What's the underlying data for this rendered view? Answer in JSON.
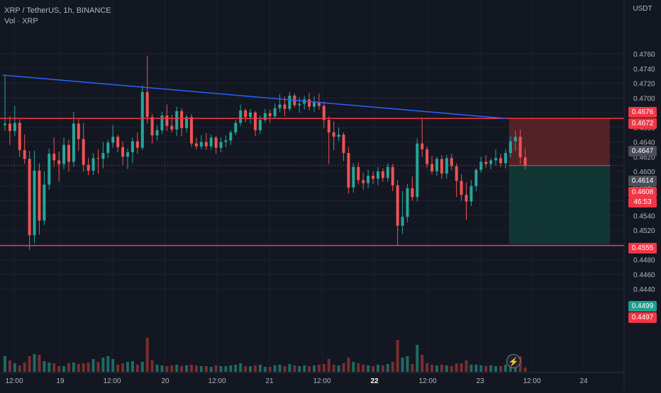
{
  "legend": {
    "symbol_line": "XRP / TetherUS, 1h, BINANCE",
    "volume_line": "Vol · XRP"
  },
  "currency_label": "USDT",
  "colors": {
    "background": "#131722",
    "up": "#26a69a",
    "down": "#ef5350",
    "trendline": "#2962ff",
    "level_line": "#f23645",
    "risk_zone": "#5c2228",
    "reward_zone": "#133a36"
  },
  "price_tags": {
    "tag_4676": "0.4676",
    "tag_4672": "0.4672",
    "tag_4647": "0.4647",
    "tag_4614": "0.4614",
    "tag_4608": "0.4608",
    "countdown": "46:53",
    "tag_4555": "0.4555",
    "tag_4499": "0.4499",
    "tag_4497": "0.4497"
  },
  "chart_data": {
    "type": "candlestick",
    "title": "XRP / TetherUS, 1h, BINANCE",
    "ylabel": "USDT",
    "y_ticks": [
      "0.4760",
      "0.4740",
      "0.4720",
      "0.4700",
      "0.4680",
      "0.4660",
      "0.4640",
      "0.4620",
      "0.4600",
      "0.4580",
      "0.4560",
      "0.4540",
      "0.4520",
      "0.4500",
      "0.4480",
      "0.4460",
      "0.4440"
    ],
    "x_ticks": [
      "12:00",
      "19",
      "12:00",
      "20",
      "12:00",
      "21",
      "12:00",
      "22",
      "12:00",
      "23",
      "12:00",
      "24"
    ],
    "grid": true,
    "horizontal_lines": [
      0.4672,
      0.4499
    ],
    "trendline": {
      "start": {
        "bar": 0,
        "price": 0.4731
      },
      "end": {
        "bar": 102,
        "price": 0.4672
      }
    },
    "position": {
      "entry": 0.4608,
      "stop": 0.4672,
      "target": 0.4501,
      "start_bar": 103,
      "end_bar": 122
    },
    "volume_pane": "Vol · XRP",
    "candles_ohlc": [
      [
        0.4663,
        0.4731,
        0.4655,
        0.4665
      ],
      [
        0.4665,
        0.4675,
        0.4636,
        0.4655
      ],
      [
        0.4655,
        0.4689,
        0.4648,
        0.4666
      ],
      [
        0.4666,
        0.4671,
        0.462,
        0.4629
      ],
      [
        0.4629,
        0.465,
        0.461,
        0.4617
      ],
      [
        0.4617,
        0.4628,
        0.4493,
        0.4513
      ],
      [
        0.4513,
        0.4628,
        0.4502,
        0.4601
      ],
      [
        0.4601,
        0.4611,
        0.4514,
        0.4533
      ],
      [
        0.4533,
        0.46,
        0.4527,
        0.4582
      ],
      [
        0.4582,
        0.4631,
        0.4575,
        0.4624
      ],
      [
        0.4624,
        0.4646,
        0.4606,
        0.4615
      ],
      [
        0.4615,
        0.4627,
        0.4586,
        0.461
      ],
      [
        0.461,
        0.4646,
        0.4603,
        0.4636
      ],
      [
        0.4636,
        0.4643,
        0.46,
        0.4613
      ],
      [
        0.4613,
        0.4681,
        0.4606,
        0.4665
      ],
      [
        0.4665,
        0.4672,
        0.4628,
        0.4644
      ],
      [
        0.4644,
        0.4666,
        0.46,
        0.4609
      ],
      [
        0.4609,
        0.4618,
        0.4595,
        0.4601
      ],
      [
        0.4601,
        0.4625,
        0.4595,
        0.4618
      ],
      [
        0.4618,
        0.463,
        0.4597,
        0.4617
      ],
      [
        0.4617,
        0.464,
        0.4604,
        0.4625
      ],
      [
        0.4625,
        0.4643,
        0.4618,
        0.4639
      ],
      [
        0.4639,
        0.4663,
        0.4632,
        0.4647
      ],
      [
        0.4647,
        0.465,
        0.4626,
        0.4633
      ],
      [
        0.4633,
        0.4641,
        0.4609,
        0.462
      ],
      [
        0.462,
        0.4631,
        0.4603,
        0.4626
      ],
      [
        0.4626,
        0.4646,
        0.4611,
        0.4641
      ],
      [
        0.4641,
        0.4653,
        0.4624,
        0.4632
      ],
      [
        0.4632,
        0.4717,
        0.4629,
        0.4708
      ],
      [
        0.4708,
        0.4757,
        0.4665,
        0.4674
      ],
      [
        0.4674,
        0.4678,
        0.4638,
        0.4649
      ],
      [
        0.4649,
        0.4663,
        0.4642,
        0.4656
      ],
      [
        0.4656,
        0.4681,
        0.4651,
        0.4676
      ],
      [
        0.4676,
        0.4691,
        0.4655,
        0.4662
      ],
      [
        0.4662,
        0.4677,
        0.4653,
        0.4657
      ],
      [
        0.4657,
        0.4688,
        0.4648,
        0.4682
      ],
      [
        0.4682,
        0.4686,
        0.4648,
        0.4659
      ],
      [
        0.4659,
        0.4677,
        0.4653,
        0.4674
      ],
      [
        0.4674,
        0.4678,
        0.4633,
        0.4638
      ],
      [
        0.4638,
        0.4646,
        0.463,
        0.4634
      ],
      [
        0.4634,
        0.4649,
        0.463,
        0.464
      ],
      [
        0.464,
        0.4652,
        0.4629,
        0.4634
      ],
      [
        0.4634,
        0.465,
        0.463,
        0.4646
      ],
      [
        0.4646,
        0.4648,
        0.4624,
        0.4632
      ],
      [
        0.4632,
        0.4646,
        0.4626,
        0.464
      ],
      [
        0.464,
        0.4649,
        0.4633,
        0.4642
      ],
      [
        0.4642,
        0.4656,
        0.4636,
        0.4653
      ],
      [
        0.4653,
        0.467,
        0.4649,
        0.4666
      ],
      [
        0.4666,
        0.4691,
        0.4662,
        0.4683
      ],
      [
        0.4683,
        0.4686,
        0.4667,
        0.4674
      ],
      [
        0.4674,
        0.4685,
        0.4665,
        0.468
      ],
      [
        0.468,
        0.4682,
        0.4648,
        0.4656
      ],
      [
        0.4656,
        0.4676,
        0.4651,
        0.467
      ],
      [
        0.467,
        0.4685,
        0.4667,
        0.4679
      ],
      [
        0.4679,
        0.4684,
        0.4666,
        0.4675
      ],
      [
        0.4675,
        0.4692,
        0.4672,
        0.4686
      ],
      [
        0.4686,
        0.4705,
        0.4681,
        0.4691
      ],
      [
        0.4691,
        0.4702,
        0.4675,
        0.4685
      ],
      [
        0.4685,
        0.4708,
        0.4682,
        0.4703
      ],
      [
        0.4703,
        0.4706,
        0.4687,
        0.469
      ],
      [
        0.469,
        0.4701,
        0.468,
        0.4692
      ],
      [
        0.4692,
        0.4703,
        0.4684,
        0.4698
      ],
      [
        0.4698,
        0.4707,
        0.4683,
        0.4688
      ],
      [
        0.4688,
        0.4702,
        0.4681,
        0.4694
      ],
      [
        0.4694,
        0.4706,
        0.4684,
        0.4689
      ],
      [
        0.4689,
        0.4695,
        0.4659,
        0.467
      ],
      [
        0.467,
        0.4675,
        0.461,
        0.4653
      ],
      [
        0.4653,
        0.4668,
        0.4629,
        0.4647
      ],
      [
        0.4647,
        0.466,
        0.4641,
        0.465
      ],
      [
        0.465,
        0.4653,
        0.4614,
        0.4625
      ],
      [
        0.4625,
        0.4633,
        0.457,
        0.4578
      ],
      [
        0.4578,
        0.4611,
        0.4571,
        0.4606
      ],
      [
        0.4606,
        0.4612,
        0.4582,
        0.4588
      ],
      [
        0.4588,
        0.4598,
        0.4575,
        0.4584
      ],
      [
        0.4584,
        0.4602,
        0.4577,
        0.4594
      ],
      [
        0.4594,
        0.46,
        0.4583,
        0.459
      ],
      [
        0.459,
        0.4606,
        0.4581,
        0.46
      ],
      [
        0.46,
        0.4604,
        0.4586,
        0.4591
      ],
      [
        0.4591,
        0.4611,
        0.4586,
        0.4606
      ],
      [
        0.4606,
        0.461,
        0.4573,
        0.4581
      ],
      [
        0.4581,
        0.4588,
        0.4499,
        0.4526
      ],
      [
        0.4526,
        0.4573,
        0.4515,
        0.4538
      ],
      [
        0.4538,
        0.4583,
        0.4531,
        0.4577
      ],
      [
        0.4577,
        0.4593,
        0.456,
        0.4565
      ],
      [
        0.4565,
        0.4645,
        0.4559,
        0.4638
      ],
      [
        0.4638,
        0.4673,
        0.462,
        0.463
      ],
      [
        0.463,
        0.4634,
        0.4605,
        0.461
      ],
      [
        0.461,
        0.4621,
        0.4596,
        0.46
      ],
      [
        0.46,
        0.462,
        0.4594,
        0.4617
      ],
      [
        0.4617,
        0.4622,
        0.459,
        0.4597
      ],
      [
        0.4597,
        0.4622,
        0.459,
        0.4618
      ],
      [
        0.4618,
        0.4624,
        0.4602,
        0.4607
      ],
      [
        0.4607,
        0.4611,
        0.4565,
        0.4587
      ],
      [
        0.4587,
        0.4596,
        0.456,
        0.4568
      ],
      [
        0.4568,
        0.4585,
        0.4534,
        0.4559
      ],
      [
        0.4559,
        0.4588,
        0.4553,
        0.458
      ],
      [
        0.458,
        0.4604,
        0.4573,
        0.4602
      ],
      [
        0.4602,
        0.462,
        0.4598,
        0.4613
      ],
      [
        0.4613,
        0.4622,
        0.4605,
        0.461
      ],
      [
        0.461,
        0.4618,
        0.4603,
        0.4615
      ],
      [
        0.4615,
        0.463,
        0.4608,
        0.4618
      ],
      [
        0.4618,
        0.4624,
        0.4606,
        0.4611
      ],
      [
        0.4611,
        0.463,
        0.4604,
        0.4625
      ],
      [
        0.4625,
        0.4648,
        0.4619,
        0.4641
      ],
      [
        0.4641,
        0.4655,
        0.4628,
        0.4647
      ],
      [
        0.4647,
        0.4657,
        0.461,
        0.4619
      ],
      [
        0.4619,
        0.4631,
        0.4603,
        0.4608
      ]
    ],
    "volume": [
      22,
      16,
      12,
      9,
      13,
      22,
      25,
      24,
      15,
      13,
      12,
      8,
      8,
      12,
      13,
      11,
      12,
      13,
      18,
      14,
      20,
      22,
      18,
      10,
      12,
      14,
      15,
      10,
      14,
      48,
      16,
      10,
      9,
      8,
      9,
      10,
      8,
      9,
      10,
      9,
      8,
      8,
      7,
      9,
      8,
      8,
      9,
      10,
      12,
      8,
      8,
      9,
      10,
      7,
      7,
      9,
      10,
      8,
      11,
      9,
      8,
      9,
      8,
      9,
      10,
      11,
      18,
      10,
      9,
      12,
      20,
      14,
      12,
      10,
      9,
      8,
      10,
      9,
      11,
      14,
      45,
      20,
      22,
      11,
      38,
      24,
      12,
      10,
      9,
      10,
      9,
      8,
      12,
      12,
      16,
      10,
      10,
      9,
      8,
      9,
      8,
      8,
      10,
      12,
      12,
      22,
      6
    ]
  }
}
